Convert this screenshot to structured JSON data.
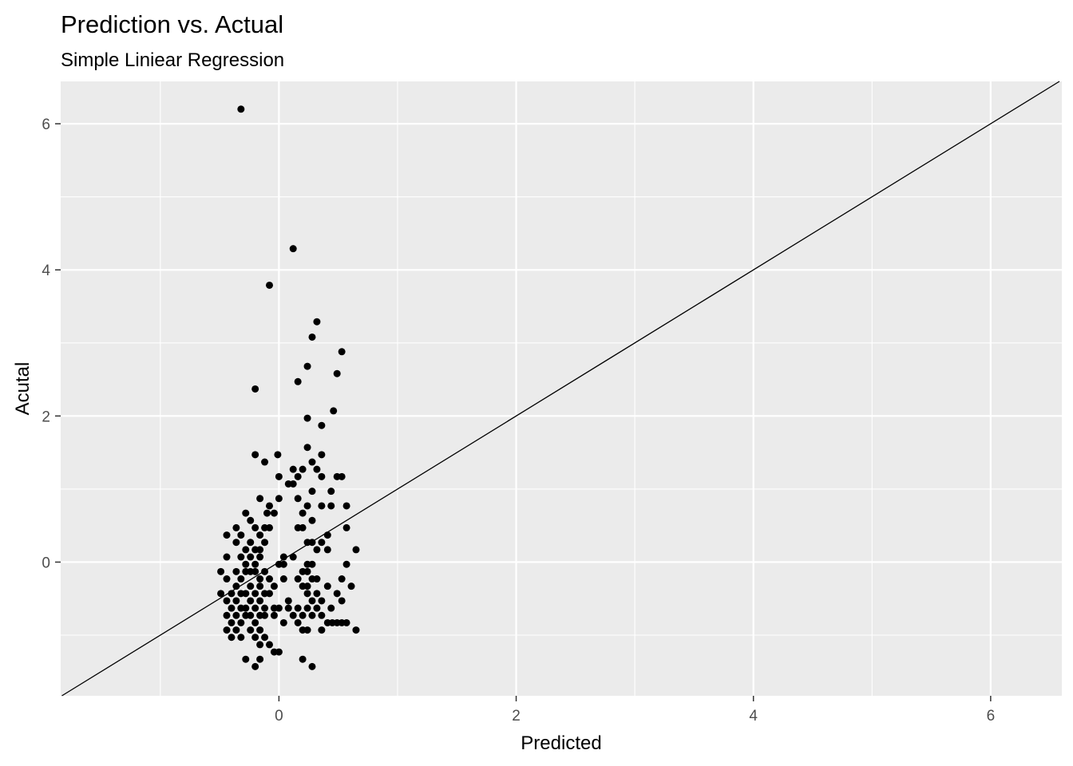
{
  "chart_data": {
    "type": "scatter",
    "title": "Prediction vs. Actual",
    "subtitle": "Simple Liniear Regression",
    "xlabel": "Predicted",
    "ylabel": "Acutal",
    "xlim": [
      -1.84,
      6.6
    ],
    "ylim": [
      -1.83,
      6.58
    ],
    "x_ticks": [
      0,
      2,
      4,
      6
    ],
    "y_ticks": [
      0,
      2,
      4,
      6
    ],
    "x_tick_labels": [
      "0",
      "2",
      "4",
      "6"
    ],
    "y_tick_labels": [
      "0",
      "2",
      "4",
      "6"
    ],
    "grid": true,
    "panel_background": "#EBEBEB",
    "grid_color": "#FFFFFF",
    "point_color": "#000000",
    "reference_line": {
      "type": "identity",
      "slope": 1,
      "intercept": 0,
      "color": "#000000"
    },
    "points": [
      [
        -0.32,
        6.2
      ],
      [
        0.12,
        4.29
      ],
      [
        -0.08,
        3.79
      ],
      [
        0.32,
        3.29
      ],
      [
        0.28,
        3.08
      ],
      [
        0.53,
        2.88
      ],
      [
        0.24,
        2.68
      ],
      [
        0.49,
        2.58
      ],
      [
        0.16,
        2.47
      ],
      [
        -0.2,
        2.37
      ],
      [
        0.46,
        2.07
      ],
      [
        0.24,
        1.97
      ],
      [
        0.36,
        1.87
      ],
      [
        0.24,
        1.57
      ],
      [
        -0.2,
        1.47
      ],
      [
        -0.01,
        1.47
      ],
      [
        0.36,
        1.47
      ],
      [
        0.12,
        1.27
      ],
      [
        0.2,
        1.27
      ],
      [
        0.28,
        1.37
      ],
      [
        -0.12,
        1.37
      ],
      [
        0.32,
        1.27
      ],
      [
        0.16,
        1.17
      ],
      [
        0.0,
        1.17
      ],
      [
        0.36,
        1.17
      ],
      [
        0.49,
        1.17
      ],
      [
        0.53,
        1.17
      ],
      [
        0.08,
        1.07
      ],
      [
        0.12,
        1.07
      ],
      [
        0.28,
        0.97
      ],
      [
        0.44,
        0.97
      ],
      [
        -0.16,
        0.87
      ],
      [
        0.0,
        0.87
      ],
      [
        0.16,
        0.87
      ],
      [
        0.24,
        0.77
      ],
      [
        -0.08,
        0.77
      ],
      [
        0.36,
        0.77
      ],
      [
        0.44,
        0.77
      ],
      [
        0.57,
        0.77
      ],
      [
        -0.28,
        0.67
      ],
      [
        -0.1,
        0.67
      ],
      [
        -0.04,
        0.67
      ],
      [
        0.2,
        0.67
      ],
      [
        -0.24,
        0.57
      ],
      [
        0.28,
        0.57
      ],
      [
        -0.36,
        0.47
      ],
      [
        -0.2,
        0.47
      ],
      [
        -0.12,
        0.47
      ],
      [
        -0.08,
        0.47
      ],
      [
        0.16,
        0.47
      ],
      [
        0.2,
        0.47
      ],
      [
        0.57,
        0.47
      ],
      [
        -0.44,
        0.37
      ],
      [
        -0.32,
        0.37
      ],
      [
        -0.16,
        0.37
      ],
      [
        0.41,
        0.37
      ],
      [
        -0.36,
        0.27
      ],
      [
        -0.24,
        0.27
      ],
      [
        -0.12,
        0.27
      ],
      [
        0.24,
        0.27
      ],
      [
        0.28,
        0.27
      ],
      [
        0.36,
        0.27
      ],
      [
        -0.28,
        0.17
      ],
      [
        -0.2,
        0.17
      ],
      [
        -0.16,
        0.17
      ],
      [
        0.32,
        0.17
      ],
      [
        0.41,
        0.17
      ],
      [
        0.65,
        0.17
      ],
      [
        -0.44,
        0.07
      ],
      [
        -0.32,
        0.07
      ],
      [
        -0.24,
        0.07
      ],
      [
        -0.16,
        0.07
      ],
      [
        0.04,
        0.07
      ],
      [
        0.12,
        0.07
      ],
      [
        -0.28,
        -0.03
      ],
      [
        -0.2,
        -0.03
      ],
      [
        0.0,
        -0.03
      ],
      [
        0.04,
        -0.03
      ],
      [
        0.24,
        -0.03
      ],
      [
        0.28,
        -0.03
      ],
      [
        0.57,
        -0.03
      ],
      [
        -0.49,
        -0.13
      ],
      [
        -0.36,
        -0.13
      ],
      [
        -0.28,
        -0.13
      ],
      [
        -0.24,
        -0.13
      ],
      [
        -0.2,
        -0.13
      ],
      [
        -0.12,
        -0.13
      ],
      [
        0.2,
        -0.13
      ],
      [
        0.24,
        -0.13
      ],
      [
        -0.44,
        -0.23
      ],
      [
        -0.32,
        -0.23
      ],
      [
        -0.16,
        -0.23
      ],
      [
        -0.08,
        -0.23
      ],
      [
        0.04,
        -0.23
      ],
      [
        0.16,
        -0.23
      ],
      [
        0.28,
        -0.23
      ],
      [
        0.32,
        -0.23
      ],
      [
        0.53,
        -0.23
      ],
      [
        -0.36,
        -0.33
      ],
      [
        -0.24,
        -0.33
      ],
      [
        -0.16,
        -0.33
      ],
      [
        -0.04,
        -0.33
      ],
      [
        0.2,
        -0.33
      ],
      [
        0.24,
        -0.33
      ],
      [
        0.41,
        -0.33
      ],
      [
        0.61,
        -0.33
      ],
      [
        -0.49,
        -0.43
      ],
      [
        -0.4,
        -0.43
      ],
      [
        -0.32,
        -0.43
      ],
      [
        -0.28,
        -0.43
      ],
      [
        -0.2,
        -0.43
      ],
      [
        -0.12,
        -0.43
      ],
      [
        -0.08,
        -0.43
      ],
      [
        0.24,
        -0.43
      ],
      [
        0.32,
        -0.43
      ],
      [
        0.49,
        -0.43
      ],
      [
        -0.44,
        -0.53
      ],
      [
        -0.36,
        -0.53
      ],
      [
        -0.24,
        -0.53
      ],
      [
        -0.16,
        -0.53
      ],
      [
        0.08,
        -0.53
      ],
      [
        0.28,
        -0.53
      ],
      [
        0.36,
        -0.53
      ],
      [
        0.53,
        -0.53
      ],
      [
        -0.4,
        -0.63
      ],
      [
        -0.32,
        -0.63
      ],
      [
        -0.28,
        -0.63
      ],
      [
        -0.2,
        -0.63
      ],
      [
        -0.12,
        -0.63
      ],
      [
        -0.04,
        -0.63
      ],
      [
        0.0,
        -0.63
      ],
      [
        0.08,
        -0.63
      ],
      [
        0.16,
        -0.63
      ],
      [
        0.24,
        -0.63
      ],
      [
        0.32,
        -0.63
      ],
      [
        0.44,
        -0.63
      ],
      [
        -0.44,
        -0.73
      ],
      [
        -0.36,
        -0.73
      ],
      [
        -0.28,
        -0.73
      ],
      [
        -0.24,
        -0.73
      ],
      [
        -0.16,
        -0.73
      ],
      [
        -0.12,
        -0.73
      ],
      [
        -0.04,
        -0.73
      ],
      [
        0.12,
        -0.73
      ],
      [
        0.2,
        -0.73
      ],
      [
        0.28,
        -0.73
      ],
      [
        0.36,
        -0.73
      ],
      [
        -0.4,
        -0.83
      ],
      [
        -0.32,
        -0.83
      ],
      [
        -0.2,
        -0.83
      ],
      [
        0.04,
        -0.83
      ],
      [
        0.16,
        -0.83
      ],
      [
        0.41,
        -0.83
      ],
      [
        0.45,
        -0.83
      ],
      [
        0.49,
        -0.83
      ],
      [
        0.53,
        -0.83
      ],
      [
        0.57,
        -0.83
      ],
      [
        -0.44,
        -0.93
      ],
      [
        -0.36,
        -0.93
      ],
      [
        -0.24,
        -0.93
      ],
      [
        -0.16,
        -0.93
      ],
      [
        0.2,
        -0.93
      ],
      [
        0.24,
        -0.93
      ],
      [
        0.36,
        -0.93
      ],
      [
        0.65,
        -0.93
      ],
      [
        -0.4,
        -1.03
      ],
      [
        -0.32,
        -1.03
      ],
      [
        -0.2,
        -1.03
      ],
      [
        -0.12,
        -1.03
      ],
      [
        -0.08,
        -1.13
      ],
      [
        -0.16,
        -1.13
      ],
      [
        -0.04,
        -1.23
      ],
      [
        0.0,
        -1.23
      ],
      [
        -0.28,
        -1.33
      ],
      [
        -0.16,
        -1.33
      ],
      [
        0.2,
        -1.33
      ],
      [
        -0.2,
        -1.43
      ],
      [
        0.28,
        -1.43
      ]
    ]
  }
}
